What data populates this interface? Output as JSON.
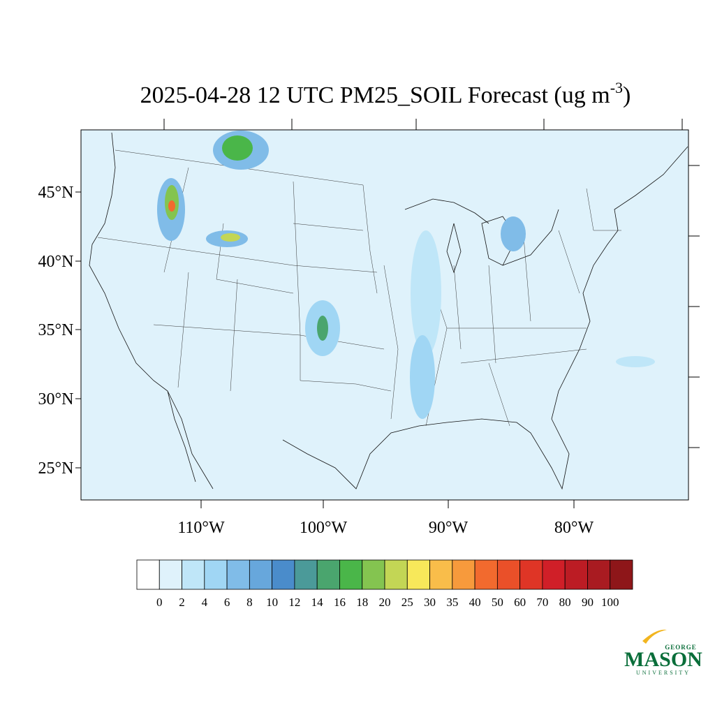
{
  "title": {
    "main": "2025-04-28 12 UTC PM25_SOIL Forecast (ug m",
    "sup": "-3",
    "end": ")"
  },
  "lat_labels": [
    "45°N",
    "40°N",
    "35°N",
    "30°N",
    "25°N"
  ],
  "lon_labels": [
    "110°W",
    "100°W",
    "90°W",
    "80°W"
  ],
  "colorbar": {
    "colors": [
      "#ffffff",
      "#dff2fb",
      "#bfe6f8",
      "#a0d6f4",
      "#80bce8",
      "#67a7dc",
      "#4a8ccb",
      "#4b9a99",
      "#4aa56e",
      "#4ab649",
      "#84c450",
      "#c3d655",
      "#f7e85a",
      "#f9bd4a",
      "#f79a3c",
      "#f26a2e",
      "#ea5029",
      "#df3526",
      "#d01f28",
      "#bc1c24",
      "#a91b21",
      "#8e1619"
    ],
    "labels": [
      "0",
      "2",
      "4",
      "6",
      "8",
      "10",
      "12",
      "14",
      "16",
      "18",
      "20",
      "25",
      "30",
      "35",
      "40",
      "50",
      "60",
      "70",
      "80",
      "90",
      "100"
    ]
  },
  "logo": {
    "top": "GEORGE",
    "name": "MASON",
    "bottom": "UNIVERSITY"
  }
}
